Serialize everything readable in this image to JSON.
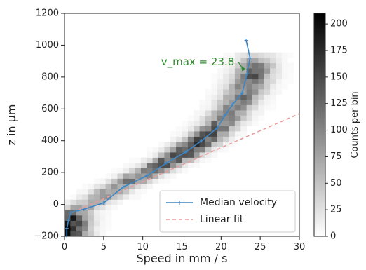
{
  "chart_data": {
    "type": "heatmap",
    "xlabel": "Speed in mm / s",
    "ylabel": "z in µm",
    "xlim": [
      0,
      30
    ],
    "ylim": [
      -200,
      1200
    ],
    "xticks": [
      0,
      5,
      10,
      15,
      20,
      25,
      30
    ],
    "yticks": [
      -200,
      0,
      200,
      400,
      600,
      800,
      1000,
      1200
    ],
    "ytick_labels": [
      "−200",
      "0",
      "200",
      "400",
      "600",
      "800",
      "1000",
      "1200"
    ],
    "colorbar": {
      "label": "Counts per bin",
      "range": [
        0,
        210
      ],
      "ticks": [
        0,
        25,
        50,
        75,
        100,
        125,
        150,
        175,
        200
      ],
      "cmap": "grey-reversed"
    },
    "histogram_ridge": {
      "description_points": [
        {
          "z": -150,
          "v": 0.5,
          "counts": 200
        },
        {
          "z": -100,
          "v": 0.6,
          "counts": 180
        },
        {
          "z": -50,
          "v": 1.0,
          "counts": 120
        },
        {
          "z": 0,
          "v": 3.0,
          "counts": 60
        },
        {
          "z": 50,
          "v": 5.0,
          "counts": 75
        },
        {
          "z": 100,
          "v": 6.5,
          "counts": 85
        },
        {
          "z": 150,
          "v": 8.5,
          "counts": 100
        },
        {
          "z": 200,
          "v": 10.5,
          "counts": 115
        },
        {
          "z": 250,
          "v": 12.5,
          "counts": 130
        },
        {
          "z": 300,
          "v": 14.5,
          "counts": 150
        },
        {
          "z": 350,
          "v": 16.0,
          "counts": 160
        },
        {
          "z": 400,
          "v": 17.5,
          "counts": 150
        },
        {
          "z": 450,
          "v": 18.7,
          "counts": 135
        },
        {
          "z": 500,
          "v": 19.8,
          "counts": 120
        },
        {
          "z": 550,
          "v": 20.8,
          "counts": 110
        },
        {
          "z": 600,
          "v": 21.6,
          "counts": 105
        },
        {
          "z": 650,
          "v": 22.3,
          "counts": 110
        },
        {
          "z": 700,
          "v": 23.0,
          "counts": 115
        },
        {
          "z": 750,
          "v": 23.5,
          "counts": 120
        },
        {
          "z": 800,
          "v": 24.0,
          "counts": 125
        },
        {
          "z": 850,
          "v": 24.3,
          "counts": 110
        },
        {
          "z": 900,
          "v": 24.5,
          "counts": 70
        },
        {
          "z": 950,
          "v": 24.4,
          "counts": 30
        }
      ],
      "spread_v": 1.6
    },
    "series": [
      {
        "name": "Median velocity",
        "style": "line-with-markers",
        "color": "#3b86c6",
        "points": [
          [
            0.3,
            -200
          ],
          [
            0.3,
            -150
          ],
          [
            0.5,
            -100
          ],
          [
            0.8,
            -50
          ],
          [
            2.5,
            -30
          ],
          [
            5.0,
            10
          ],
          [
            7.5,
            110
          ],
          [
            10.5,
            180
          ],
          [
            13.0,
            260
          ],
          [
            15.5,
            330
          ],
          [
            17.5,
            400
          ],
          [
            19.5,
            480
          ],
          [
            20.5,
            560
          ],
          [
            21.5,
            630
          ],
          [
            22.7,
            700
          ],
          [
            23.3,
            820
          ],
          [
            23.7,
            920
          ],
          [
            23.2,
            1030
          ]
        ]
      },
      {
        "name": "Linear fit",
        "style": "dashed",
        "color": "#e99a9a",
        "points": [
          [
            1.0,
            -50
          ],
          [
            30.0,
            570
          ]
        ]
      }
    ],
    "annotation": {
      "text": "v_max = 23.8",
      "color": "#2f8a2f",
      "point": [
        23.3,
        850
      ],
      "text_position": [
        12.0,
        850
      ]
    },
    "legend": {
      "position": "lower-right",
      "entries": [
        "Median velocity",
        "Linear fit"
      ]
    },
    "grid": false
  }
}
